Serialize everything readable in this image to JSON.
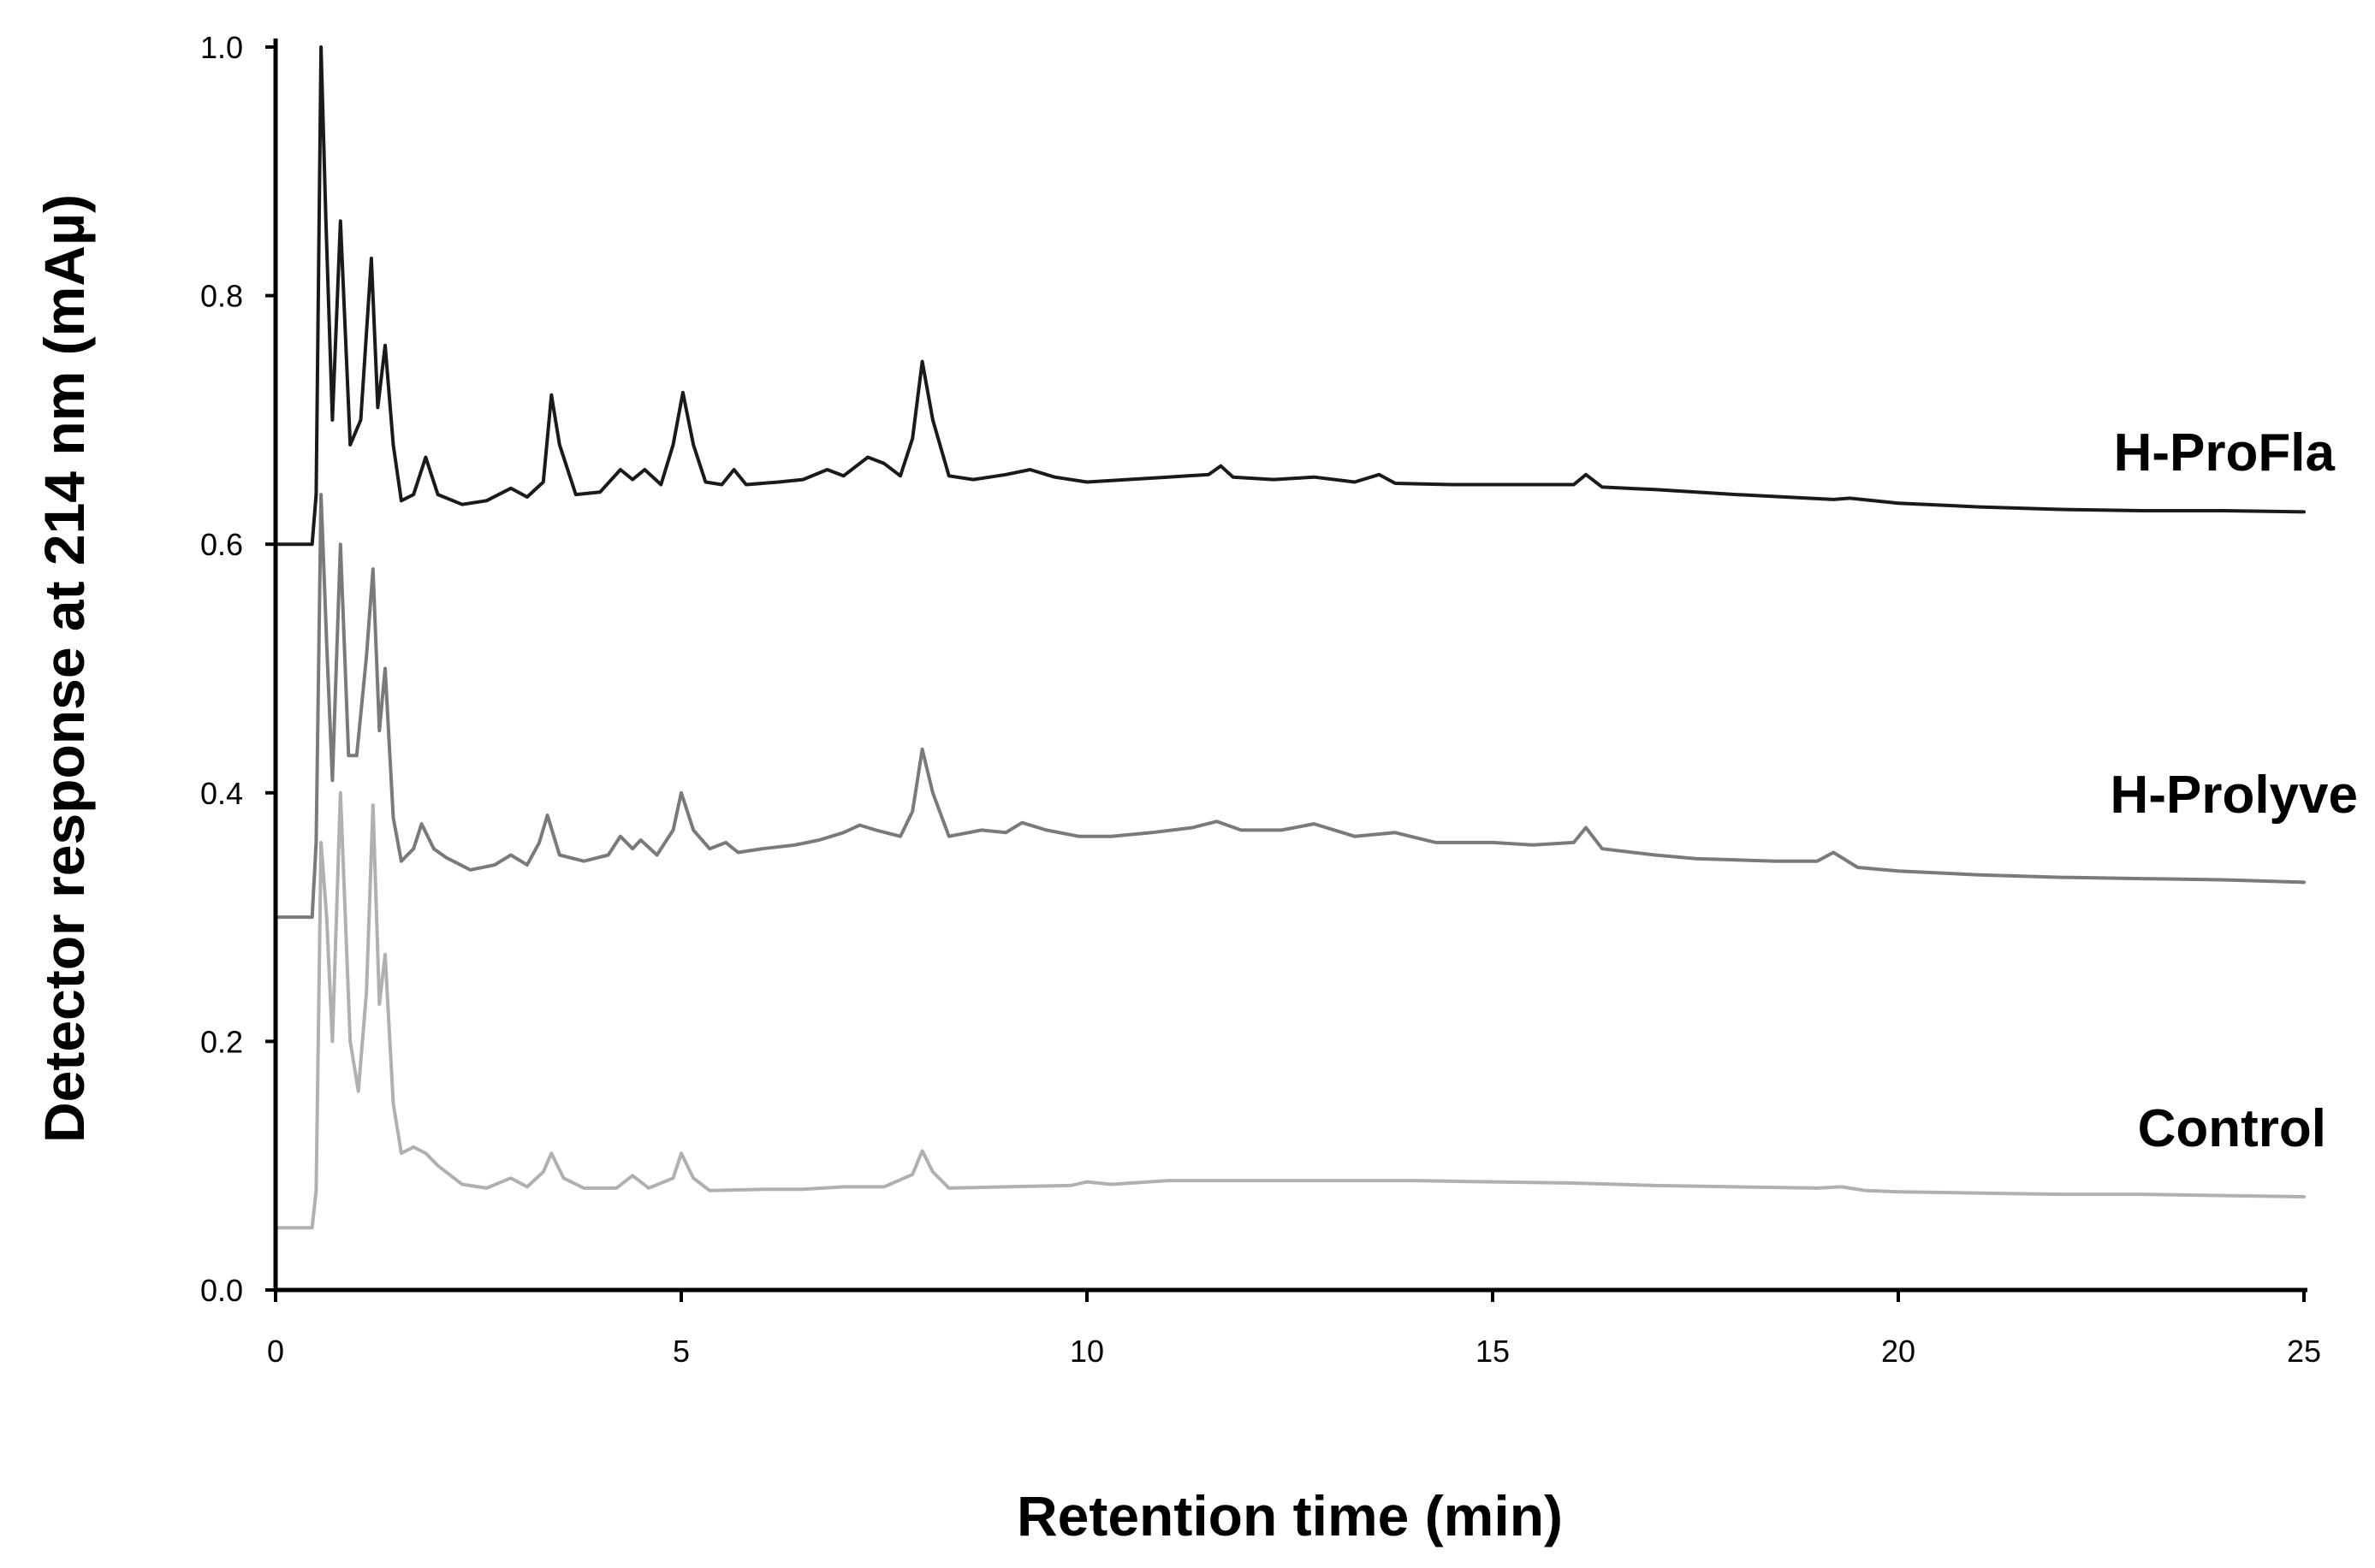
{
  "chart_data": {
    "type": "line",
    "title": "",
    "xlabel": "Retention time (min)",
    "ylabel": "Detector response at 214 nm (mAµ)",
    "xlim": [
      0,
      25
    ],
    "ylim": [
      0,
      1.0
    ],
    "xticks": [
      0,
      5,
      10,
      15,
      20,
      25
    ],
    "xtick_labels": [
      "0",
      "5",
      "10",
      "15",
      "20",
      "25"
    ],
    "yticks": [
      0.0,
      0.2,
      0.4,
      0.6,
      0.8,
      1.0
    ],
    "ytick_labels": [
      "0.0",
      "0.2",
      "0.4",
      "0.6",
      "0.8",
      "1.0"
    ],
    "grid": false,
    "legend": "direct labels at right of each trace",
    "series": [
      {
        "name": "H-ProFla",
        "color": "#1a1a1a",
        "points": [
          [
            0,
            0.6
          ],
          [
            0.45,
            0.6
          ],
          [
            0.5,
            0.64
          ],
          [
            0.56,
            1.0
          ],
          [
            0.62,
            0.86
          ],
          [
            0.7,
            0.7
          ],
          [
            0.8,
            0.86
          ],
          [
            0.92,
            0.68
          ],
          [
            1.05,
            0.7
          ],
          [
            1.18,
            0.83
          ],
          [
            1.26,
            0.71
          ],
          [
            1.35,
            0.76
          ],
          [
            1.45,
            0.68
          ],
          [
            1.55,
            0.635
          ],
          [
            1.7,
            0.64
          ],
          [
            1.85,
            0.67
          ],
          [
            2.0,
            0.64
          ],
          [
            2.3,
            0.632
          ],
          [
            2.6,
            0.635
          ],
          [
            2.9,
            0.645
          ],
          [
            3.1,
            0.638
          ],
          [
            3.3,
            0.65
          ],
          [
            3.4,
            0.72
          ],
          [
            3.5,
            0.68
          ],
          [
            3.7,
            0.64
          ],
          [
            4.0,
            0.642
          ],
          [
            4.25,
            0.66
          ],
          [
            4.4,
            0.652
          ],
          [
            4.55,
            0.66
          ],
          [
            4.75,
            0.648
          ],
          [
            4.9,
            0.68
          ],
          [
            5.02,
            0.722
          ],
          [
            5.15,
            0.68
          ],
          [
            5.3,
            0.65
          ],
          [
            5.5,
            0.648
          ],
          [
            5.65,
            0.66
          ],
          [
            5.8,
            0.648
          ],
          [
            6.2,
            0.65
          ],
          [
            6.5,
            0.652
          ],
          [
            6.8,
            0.66
          ],
          [
            7.0,
            0.655
          ],
          [
            7.3,
            0.67
          ],
          [
            7.5,
            0.665
          ],
          [
            7.7,
            0.655
          ],
          [
            7.85,
            0.685
          ],
          [
            7.97,
            0.747
          ],
          [
            8.1,
            0.7
          ],
          [
            8.3,
            0.655
          ],
          [
            8.6,
            0.652
          ],
          [
            9.0,
            0.656
          ],
          [
            9.3,
            0.66
          ],
          [
            9.6,
            0.654
          ],
          [
            10.0,
            0.65
          ],
          [
            10.5,
            0.652
          ],
          [
            11.0,
            0.654
          ],
          [
            11.5,
            0.656
          ],
          [
            11.65,
            0.663
          ],
          [
            11.8,
            0.654
          ],
          [
            12.3,
            0.652
          ],
          [
            12.8,
            0.654
          ],
          [
            13.3,
            0.65
          ],
          [
            13.6,
            0.656
          ],
          [
            13.8,
            0.649
          ],
          [
            14.5,
            0.648
          ],
          [
            15.5,
            0.648
          ],
          [
            16.0,
            0.648
          ],
          [
            16.15,
            0.656
          ],
          [
            16.35,
            0.646
          ],
          [
            17.0,
            0.644
          ],
          [
            18.0,
            0.64
          ],
          [
            19.2,
            0.636
          ],
          [
            19.4,
            0.637
          ],
          [
            20.0,
            0.633
          ],
          [
            21.0,
            0.63
          ],
          [
            22.0,
            0.628
          ],
          [
            23.0,
            0.627
          ],
          [
            24.0,
            0.627
          ],
          [
            25.0,
            0.626
          ]
        ]
      },
      {
        "name": "H-Prolyve",
        "color": "#7a7a7a",
        "points": [
          [
            0,
            0.3
          ],
          [
            0.45,
            0.3
          ],
          [
            0.5,
            0.36
          ],
          [
            0.56,
            0.64
          ],
          [
            0.63,
            0.52
          ],
          [
            0.7,
            0.41
          ],
          [
            0.8,
            0.6
          ],
          [
            0.9,
            0.43
          ],
          [
            1.0,
            0.43
          ],
          [
            1.12,
            0.51
          ],
          [
            1.2,
            0.58
          ],
          [
            1.28,
            0.45
          ],
          [
            1.35,
            0.5
          ],
          [
            1.45,
            0.38
          ],
          [
            1.55,
            0.345
          ],
          [
            1.7,
            0.355
          ],
          [
            1.8,
            0.375
          ],
          [
            1.95,
            0.355
          ],
          [
            2.1,
            0.348
          ],
          [
            2.4,
            0.338
          ],
          [
            2.7,
            0.342
          ],
          [
            2.9,
            0.35
          ],
          [
            3.1,
            0.342
          ],
          [
            3.25,
            0.36
          ],
          [
            3.35,
            0.382
          ],
          [
            3.5,
            0.35
          ],
          [
            3.8,
            0.345
          ],
          [
            4.1,
            0.35
          ],
          [
            4.25,
            0.365
          ],
          [
            4.4,
            0.355
          ],
          [
            4.5,
            0.362
          ],
          [
            4.7,
            0.35
          ],
          [
            4.9,
            0.37
          ],
          [
            5.0,
            0.4
          ],
          [
            5.15,
            0.37
          ],
          [
            5.35,
            0.355
          ],
          [
            5.55,
            0.36
          ],
          [
            5.7,
            0.352
          ],
          [
            6.0,
            0.355
          ],
          [
            6.4,
            0.358
          ],
          [
            6.7,
            0.362
          ],
          [
            7.0,
            0.368
          ],
          [
            7.2,
            0.374
          ],
          [
            7.4,
            0.37
          ],
          [
            7.7,
            0.365
          ],
          [
            7.85,
            0.385
          ],
          [
            7.97,
            0.435
          ],
          [
            8.1,
            0.4
          ],
          [
            8.3,
            0.365
          ],
          [
            8.7,
            0.37
          ],
          [
            9.0,
            0.368
          ],
          [
            9.2,
            0.376
          ],
          [
            9.5,
            0.37
          ],
          [
            9.9,
            0.365
          ],
          [
            10.3,
            0.365
          ],
          [
            10.8,
            0.368
          ],
          [
            11.3,
            0.372
          ],
          [
            11.6,
            0.377
          ],
          [
            11.9,
            0.37
          ],
          [
            12.4,
            0.37
          ],
          [
            12.8,
            0.375
          ],
          [
            13.3,
            0.365
          ],
          [
            13.8,
            0.368
          ],
          [
            14.3,
            0.36
          ],
          [
            15.0,
            0.36
          ],
          [
            15.5,
            0.358
          ],
          [
            16.0,
            0.36
          ],
          [
            16.15,
            0.372
          ],
          [
            16.35,
            0.355
          ],
          [
            17.0,
            0.35
          ],
          [
            17.5,
            0.347
          ],
          [
            18.5,
            0.345
          ],
          [
            19.0,
            0.345
          ],
          [
            19.2,
            0.352
          ],
          [
            19.5,
            0.34
          ],
          [
            20.0,
            0.337
          ],
          [
            21.0,
            0.334
          ],
          [
            22.0,
            0.332
          ],
          [
            23.0,
            0.331
          ],
          [
            24.0,
            0.33
          ],
          [
            25.0,
            0.328
          ]
        ]
      },
      {
        "name": "Control",
        "color": "#b0b0b0",
        "points": [
          [
            0,
            0.05
          ],
          [
            0.45,
            0.05
          ],
          [
            0.5,
            0.08
          ],
          [
            0.56,
            0.36
          ],
          [
            0.63,
            0.3
          ],
          [
            0.7,
            0.2
          ],
          [
            0.8,
            0.4
          ],
          [
            0.92,
            0.2
          ],
          [
            1.02,
            0.16
          ],
          [
            1.12,
            0.24
          ],
          [
            1.2,
            0.39
          ],
          [
            1.28,
            0.23
          ],
          [
            1.35,
            0.27
          ],
          [
            1.45,
            0.15
          ],
          [
            1.55,
            0.11
          ],
          [
            1.7,
            0.115
          ],
          [
            1.85,
            0.11
          ],
          [
            2.0,
            0.1
          ],
          [
            2.3,
            0.085
          ],
          [
            2.6,
            0.082
          ],
          [
            2.9,
            0.09
          ],
          [
            3.1,
            0.083
          ],
          [
            3.3,
            0.095
          ],
          [
            3.4,
            0.11
          ],
          [
            3.55,
            0.09
          ],
          [
            3.8,
            0.082
          ],
          [
            4.2,
            0.082
          ],
          [
            4.4,
            0.092
          ],
          [
            4.6,
            0.082
          ],
          [
            4.9,
            0.09
          ],
          [
            5.0,
            0.11
          ],
          [
            5.15,
            0.09
          ],
          [
            5.35,
            0.08
          ],
          [
            6.0,
            0.081
          ],
          [
            6.5,
            0.081
          ],
          [
            7.0,
            0.083
          ],
          [
            7.5,
            0.083
          ],
          [
            7.85,
            0.093
          ],
          [
            7.97,
            0.112
          ],
          [
            8.1,
            0.095
          ],
          [
            8.3,
            0.082
          ],
          [
            9.0,
            0.083
          ],
          [
            9.8,
            0.084
          ],
          [
            10.0,
            0.087
          ],
          [
            10.3,
            0.085
          ],
          [
            11.0,
            0.088
          ],
          [
            12.0,
            0.088
          ],
          [
            13.0,
            0.088
          ],
          [
            14.0,
            0.088
          ],
          [
            15.0,
            0.087
          ],
          [
            16.0,
            0.086
          ],
          [
            17.0,
            0.084
          ],
          [
            18.0,
            0.083
          ],
          [
            19.0,
            0.082
          ],
          [
            19.3,
            0.083
          ],
          [
            19.6,
            0.08
          ],
          [
            20.0,
            0.079
          ],
          [
            21.0,
            0.078
          ],
          [
            22.0,
            0.077
          ],
          [
            23.0,
            0.077
          ],
          [
            24.0,
            0.076
          ],
          [
            25.0,
            0.075
          ]
        ]
      }
    ]
  }
}
